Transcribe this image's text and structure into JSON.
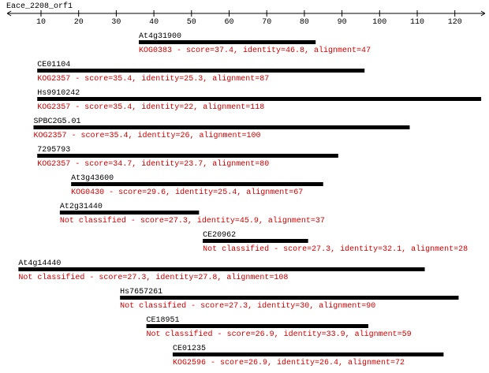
{
  "query": {
    "title": "Eace_2208_orf1",
    "xlim": [
      1,
      128
    ],
    "xticks": [
      10,
      20,
      30,
      40,
      50,
      60,
      70,
      80,
      90,
      100,
      110,
      120
    ]
  },
  "hits": [
    {
      "name": "At4g31900",
      "start": 36,
      "end": 83,
      "label": "KOG0383 - score=37.4, identity=46.8, alignment=47"
    },
    {
      "name": "CE01104",
      "start": 9,
      "end": 96,
      "label": "KOG2357 - score=35.4, identity=25.3, alignment=87"
    },
    {
      "name": "Hs9910242",
      "start": 9,
      "end": 127,
      "label": "KOG2357 - score=35.4, identity=22, alignment=118"
    },
    {
      "name": "SPBC2G5.01",
      "start": 8,
      "end": 108,
      "label": "KOG2357 - score=35.4, identity=26, alignment=100"
    },
    {
      "name": "7295793",
      "start": 9,
      "end": 89,
      "label": "KOG2357 - score=34.7, identity=23.7, alignment=80"
    },
    {
      "name": "At3g43600",
      "start": 18,
      "end": 85,
      "label": "KOG0430 - score=29.6, identity=25.4, alignment=67"
    },
    {
      "name": "At2g31440",
      "start": 15,
      "end": 52,
      "label": "Not classified - score=27.3, identity=45.9, alignment=37"
    },
    {
      "name": "CE20962",
      "start": 53,
      "end": 81,
      "label": "Not classified - score=27.3, identity=32.1, alignment=28"
    },
    {
      "name": "At4g14440",
      "start": 4,
      "end": 112,
      "label": "Not classified - score=27.3, identity=27.8, alignment=108"
    },
    {
      "name": "Hs7657261",
      "start": 31,
      "end": 121,
      "label": "Not classified - score=27.3, identity=30, alignment=90"
    },
    {
      "name": "CE18951",
      "start": 38,
      "end": 97,
      "label": "Not classified - score=26.9, identity=33.9, alignment=59"
    },
    {
      "name": "CE01235",
      "start": 45,
      "end": 117,
      "label": "KOG2596 - score=26.9, identity=26.4, alignment=72"
    }
  ]
}
